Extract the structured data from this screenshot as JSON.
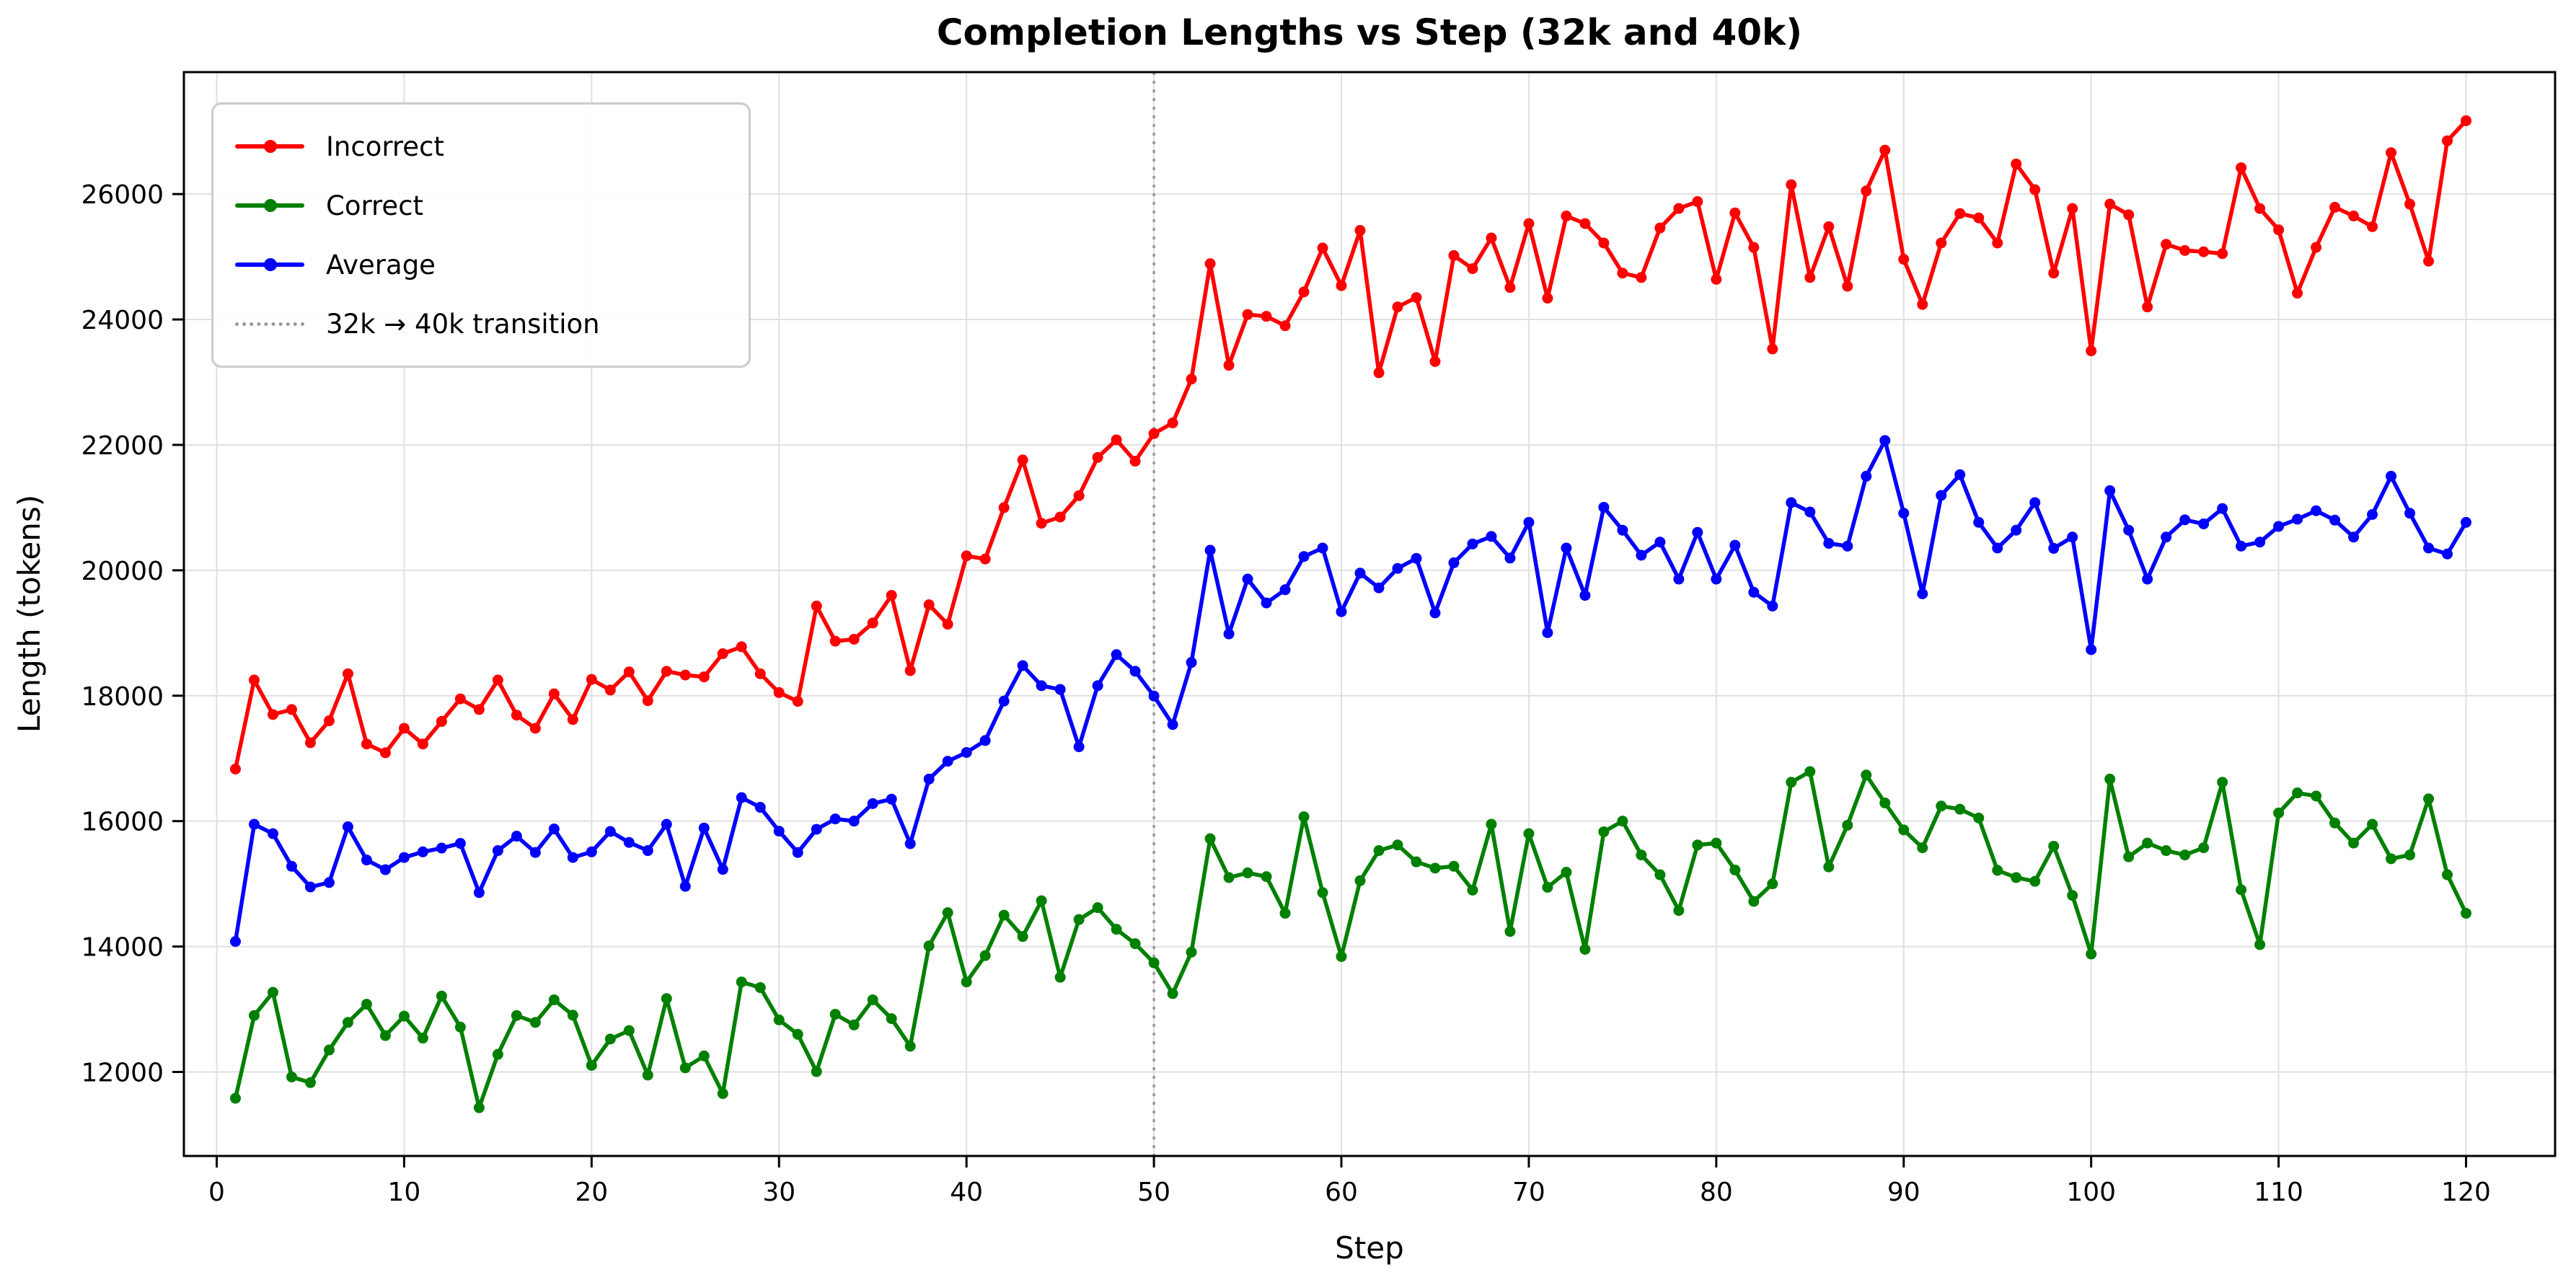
{
  "title": "Completion Lengths vs Step (32k and 40k)",
  "axes": {
    "xlabel": "Step",
    "ylabel": "Length (tokens)",
    "x_ticks": [
      0,
      10,
      20,
      30,
      40,
      50,
      60,
      70,
      80,
      90,
      100,
      110,
      120
    ],
    "y_ticks": [
      12000,
      14000,
      16000,
      18000,
      20000,
      22000,
      24000,
      26000
    ],
    "xlim": [
      -1.75,
      124.75
    ],
    "ylim": [
      10660,
      27945
    ],
    "grid": true
  },
  "legend": {
    "position": "upper-left",
    "items": [
      {
        "label": "Incorrect",
        "color": "#ff0000",
        "style": "line-marker"
      },
      {
        "label": "Correct",
        "color": "#008000",
        "style": "line-marker"
      },
      {
        "label": "Average",
        "color": "#0000ff",
        "style": "line-marker"
      },
      {
        "label": "32k → 40k transition",
        "color": "#999999",
        "style": "dotted"
      }
    ]
  },
  "colors": {
    "incorrect": "#ff0000",
    "correct": "#008000",
    "average": "#0000ff",
    "transition_line": "#999999",
    "grid": "#e0e0e0",
    "spine": "#000000"
  },
  "chart_data": {
    "type": "line",
    "title": "Completion Lengths vs Step (32k and 40k)",
    "xlabel": "Step",
    "ylabel": "Length (tokens)",
    "xlim": [
      -1.75,
      124.75
    ],
    "ylim": [
      10660,
      27945
    ],
    "legend_position": "upper-left",
    "grid": "on",
    "transition": {
      "step": 50,
      "label": "32k → 40k transition"
    },
    "x": [
      1,
      2,
      3,
      4,
      5,
      6,
      7,
      8,
      9,
      10,
      11,
      12,
      13,
      14,
      15,
      16,
      17,
      18,
      19,
      20,
      21,
      22,
      23,
      24,
      25,
      26,
      27,
      28,
      29,
      30,
      31,
      32,
      33,
      34,
      35,
      36,
      37,
      38,
      39,
      40,
      41,
      42,
      43,
      44,
      45,
      46,
      47,
      48,
      49,
      50,
      51,
      52,
      53,
      54,
      55,
      56,
      57,
      58,
      59,
      60,
      61,
      62,
      63,
      64,
      65,
      66,
      67,
      68,
      69,
      70,
      71,
      72,
      73,
      74,
      75,
      76,
      77,
      78,
      79,
      80,
      81,
      82,
      83,
      84,
      85,
      86,
      87,
      88,
      89,
      90,
      91,
      92,
      93,
      94,
      95,
      96,
      97,
      98,
      99,
      100,
      101,
      102,
      103,
      104,
      105,
      106,
      107,
      108,
      109,
      110,
      111,
      112,
      113,
      114,
      115,
      116,
      117,
      118,
      119,
      120
    ],
    "series": [
      {
        "name": "Incorrect",
        "color": "#ff0000",
        "values": [
          16830,
          18250,
          17700,
          17780,
          17250,
          17600,
          18350,
          17230,
          17090,
          17480,
          17230,
          17590,
          17950,
          17780,
          18250,
          17690,
          17480,
          18030,
          17620,
          18260,
          18090,
          18380,
          17920,
          18390,
          18330,
          18300,
          18670,
          18780,
          18350,
          18050,
          17910,
          19430,
          18870,
          18900,
          19160,
          19600,
          18400,
          19450,
          19140,
          20230,
          20180,
          21000,
          21760,
          20750,
          20850,
          21190,
          21800,
          22080,
          21740,
          22180,
          22350,
          23050,
          24890,
          23270,
          24080,
          24050,
          23900,
          24440,
          25140,
          24540,
          25420,
          23150,
          24200,
          24350,
          23330,
          25020,
          24810,
          25300,
          24510,
          25530,
          24340,
          25650,
          25530,
          25220,
          24740,
          24670,
          25460,
          25770,
          25880,
          24640,
          25700,
          25150,
          23530,
          26150,
          24670,
          25480,
          24530,
          26050,
          26700,
          24960,
          24240,
          25220,
          25690,
          25620,
          25220,
          26480,
          26070,
          24740,
          25770,
          23500,
          25840,
          25670,
          24200,
          25200,
          25100,
          25080,
          25050,
          26420,
          25770,
          25430,
          24420,
          25150,
          25790,
          25650,
          25480,
          26660,
          25840,
          24930,
          26850,
          27170
        ]
      },
      {
        "name": "Correct",
        "color": "#008000",
        "values": [
          11580,
          12900,
          13270,
          11920,
          11830,
          12350,
          12790,
          13080,
          12580,
          12890,
          12540,
          13210,
          12715,
          11430,
          12280,
          12900,
          12790,
          13150,
          12905,
          12105,
          12525,
          12660,
          11950,
          13170,
          12065,
          12255,
          11655,
          13435,
          13345,
          12830,
          12600,
          12005,
          12920,
          12750,
          13150,
          12850,
          12410,
          14010,
          14540,
          13435,
          13855,
          14500,
          14160,
          14730,
          13510,
          14430,
          14620,
          14275,
          14045,
          13740,
          13250,
          13910,
          15720,
          15100,
          15175,
          15115,
          14530,
          16070,
          14860,
          13840,
          15050,
          15530,
          15620,
          15350,
          15250,
          15280,
          14900,
          15950,
          14240,
          15800,
          14945,
          15185,
          13955,
          15830,
          16000,
          15460,
          15145,
          14575,
          15620,
          15650,
          15220,
          14720,
          15000,
          16620,
          16790,
          15270,
          15935,
          16735,
          16290,
          15860,
          15575,
          16240,
          16190,
          16050,
          15215,
          15100,
          15040,
          15600,
          14815,
          13880,
          16670,
          15430,
          15650,
          15530,
          15460,
          15575,
          16620,
          14905,
          14030,
          16130,
          16450,
          16400,
          15970,
          15650,
          15950,
          15400,
          15460,
          16355,
          15145,
          14530
        ]
      },
      {
        "name": "Average",
        "color": "#0000ff",
        "values": [
          14080,
          15950,
          15800,
          15280,
          14950,
          15020,
          15910,
          15380,
          15225,
          15420,
          15510,
          15570,
          15645,
          14860,
          15530,
          15760,
          15500,
          15875,
          15420,
          15510,
          15835,
          15660,
          15530,
          15950,
          14960,
          15890,
          15230,
          16375,
          16220,
          15840,
          15500,
          15870,
          16035,
          16000,
          16280,
          16350,
          15640,
          16670,
          16955,
          17095,
          17285,
          17915,
          18480,
          18160,
          18100,
          17185,
          18160,
          18655,
          18390,
          17995,
          17540,
          18530,
          20320,
          18985,
          19860,
          19480,
          19690,
          20220,
          20355,
          19340,
          19955,
          19720,
          20030,
          20190,
          19320,
          20120,
          20420,
          20540,
          20195,
          20765,
          19005,
          20355,
          19600,
          21005,
          20640,
          20240,
          20450,
          19860,
          20605,
          19860,
          20400,
          19650,
          19430,
          21080,
          20930,
          20430,
          20385,
          21500,
          22070,
          20910,
          19625,
          21195,
          21525,
          20765,
          20355,
          20640,
          21080,
          20350,
          20530,
          18735,
          21270,
          20640,
          19860,
          20530,
          20805,
          20740,
          20985,
          20385,
          20450,
          20700,
          20815,
          20950,
          20800,
          20530,
          20890,
          21500,
          20910,
          20355,
          20260,
          20765
        ]
      }
    ]
  }
}
